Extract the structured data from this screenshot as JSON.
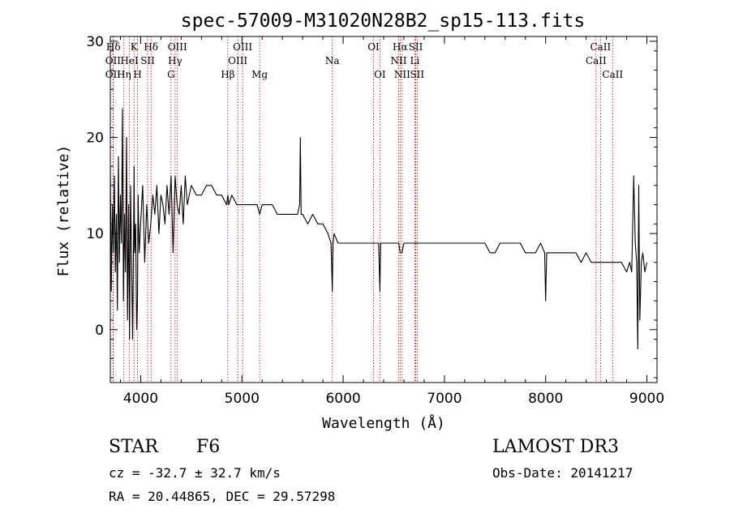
{
  "chart_data": {
    "type": "line",
    "title": "spec-57009-M31020N28B2_sp15-113.fits",
    "xlabel": "Wavelength (Å)",
    "ylabel": "Flux (relative)",
    "xlim": [
      3700,
      9100
    ],
    "ylim": [
      -5.5,
      30.5
    ],
    "x_ticks": [
      {
        "value": 4000,
        "label": "4000"
      },
      {
        "value": 5000,
        "label": "5000"
      },
      {
        "value": 6000,
        "label": "6000"
      },
      {
        "value": 7000,
        "label": "7000"
      },
      {
        "value": 8000,
        "label": "8000"
      },
      {
        "value": 9000,
        "label": "9000"
      }
    ],
    "y_ticks": [
      {
        "value": 0,
        "label": "0"
      },
      {
        "value": 10,
        "label": "10"
      },
      {
        "value": 20,
        "label": "20"
      },
      {
        "value": 30,
        "label": "30"
      }
    ],
    "grid": false,
    "line_color": "#000000",
    "marker_color": "#c00000",
    "series": [
      {
        "name": "flux",
        "x": [
          3700,
          3710,
          3720,
          3730,
          3740,
          3750,
          3760,
          3770,
          3780,
          3790,
          3800,
          3810,
          3820,
          3830,
          3840,
          3850,
          3860,
          3870,
          3880,
          3890,
          3900,
          3910,
          3920,
          3930,
          3935,
          3940,
          3950,
          3960,
          3968,
          3975,
          3985,
          4000,
          4020,
          4040,
          4060,
          4080,
          4100,
          4120,
          4140,
          4160,
          4180,
          4200,
          4220,
          4240,
          4260,
          4280,
          4300,
          4320,
          4340,
          4360,
          4380,
          4400,
          4420,
          4440,
          4460,
          4480,
          4500,
          4550,
          4600,
          4650,
          4700,
          4750,
          4800,
          4850,
          4861,
          4870,
          4900,
          4950,
          5000,
          5050,
          5100,
          5150,
          5175,
          5200,
          5250,
          5300,
          5350,
          5400,
          5450,
          5500,
          5550,
          5570,
          5577,
          5585,
          5600,
          5650,
          5700,
          5750,
          5800,
          5850,
          5880,
          5893,
          5900,
          5910,
          5950,
          6000,
          6050,
          6100,
          6150,
          6200,
          6250,
          6300,
          6320,
          6340,
          6350,
          6363,
          6370,
          6400,
          6450,
          6500,
          6550,
          6563,
          6580,
          6600,
          6650,
          6700,
          6750,
          6800,
          6850,
          6900,
          6950,
          7000,
          7050,
          7100,
          7150,
          7200,
          7250,
          7300,
          7350,
          7400,
          7450,
          7500,
          7550,
          7600,
          7650,
          7700,
          7750,
          7800,
          7850,
          7900,
          7950,
          7990,
          8000,
          8010,
          8050,
          8100,
          8150,
          8200,
          8250,
          8300,
          8350,
          8400,
          8450,
          8498,
          8542,
          8560,
          8600,
          8640,
          8662,
          8700,
          8750,
          8800,
          8830,
          8850,
          8870,
          8885,
          8900,
          8910,
          8920,
          8930,
          8945,
          8960,
          8980,
          9000
        ],
        "values": [
          17,
          4,
          13,
          8,
          16,
          6,
          12,
          2,
          18,
          7,
          14,
          9,
          23,
          3,
          12,
          6,
          20,
          1,
          13,
          -1,
          15,
          7,
          -1,
          10,
          17,
          8,
          11,
          0,
          3,
          14,
          8,
          11,
          15,
          7,
          13,
          9,
          11,
          14,
          12,
          15,
          10,
          14,
          13,
          11,
          15,
          12,
          16,
          8,
          16,
          13,
          12,
          15,
          11,
          16,
          13,
          14,
          15,
          14,
          14,
          15,
          15,
          14,
          14,
          13,
          14,
          13,
          14,
          13,
          13,
          13,
          13,
          13,
          12,
          13,
          13,
          13,
          12,
          12,
          12,
          12,
          12,
          13,
          20,
          12,
          12,
          11,
          12,
          11,
          11,
          10,
          9,
          4,
          9,
          10,
          9,
          9,
          9,
          9,
          9,
          9,
          9,
          9,
          9,
          9,
          9,
          4,
          9,
          9,
          9,
          9,
          9,
          8,
          8,
          9,
          9,
          9,
          9,
          9,
          9,
          9,
          9,
          9,
          9,
          9,
          9,
          9,
          9,
          9,
          9,
          9,
          8,
          8,
          9,
          9,
          9,
          9,
          9,
          8,
          8,
          8,
          9,
          8,
          3,
          8,
          8,
          8,
          8,
          8,
          8,
          8,
          7,
          8,
          7,
          7,
          7,
          7,
          7,
          7,
          7,
          7,
          7,
          6,
          7,
          6,
          16,
          9,
          7,
          -2,
          15,
          1,
          7,
          8,
          6,
          7
        ]
      }
    ],
    "lines": [
      {
        "label": "Hδ",
        "x": 3730,
        "row": 0
      },
      {
        "label": "OII",
        "x": 3727,
        "row": 1
      },
      {
        "label": "OII",
        "x": 3727,
        "row": 2
      },
      {
        "label": "K",
        "x": 3934,
        "row": 0
      },
      {
        "label": "HeI",
        "x": 3889,
        "row": 1
      },
      {
        "label": "Hη",
        "x": 3835,
        "row": 2
      },
      {
        "label": "SII",
        "x": 4069,
        "row": 1
      },
      {
        "label": "H",
        "x": 3969,
        "row": 2
      },
      {
        "label": "Hδ",
        "x": 4102,
        "row": 0
      },
      {
        "label": "OIII",
        "x": 4363,
        "row": 0
      },
      {
        "label": "Hγ",
        "x": 4340,
        "row": 1
      },
      {
        "label": "G",
        "x": 4300,
        "row": 2
      },
      {
        "label": "OIII",
        "x": 5007,
        "row": 0
      },
      {
        "label": "OIII",
        "x": 4959,
        "row": 1
      },
      {
        "label": "Hβ",
        "x": 4861,
        "row": 2
      },
      {
        "label": "Mg",
        "x": 5175,
        "row": 2
      },
      {
        "label": "Na",
        "x": 5893,
        "row": 1
      },
      {
        "label": "OI",
        "x": 6300,
        "row": 0
      },
      {
        "label": "OI",
        "x": 6363,
        "row": 2
      },
      {
        "label": "Hα",
        "x": 6563,
        "row": 0
      },
      {
        "label": "NII",
        "x": 6548,
        "row": 1
      },
      {
        "label": "NII",
        "x": 6583,
        "row": 2
      },
      {
        "label": "SII",
        "x": 6717,
        "row": 0
      },
      {
        "label": "Li",
        "x": 6708,
        "row": 1
      },
      {
        "label": "SII",
        "x": 6731,
        "row": 2
      },
      {
        "label": "CaII",
        "x": 8542,
        "row": 0
      },
      {
        "label": "CaII",
        "x": 8498,
        "row": 1
      },
      {
        "label": "CaII",
        "x": 8662,
        "row": 2
      }
    ]
  },
  "info": {
    "object_class": "STAR",
    "subclass": "F6",
    "survey": "LAMOST DR3",
    "velocity": "cz = -32.7 ± 32.7 km/s",
    "obs_date": "Obs-Date: 20141217",
    "coordinates": "RA =  20.44865, DEC =  29.57298"
  }
}
